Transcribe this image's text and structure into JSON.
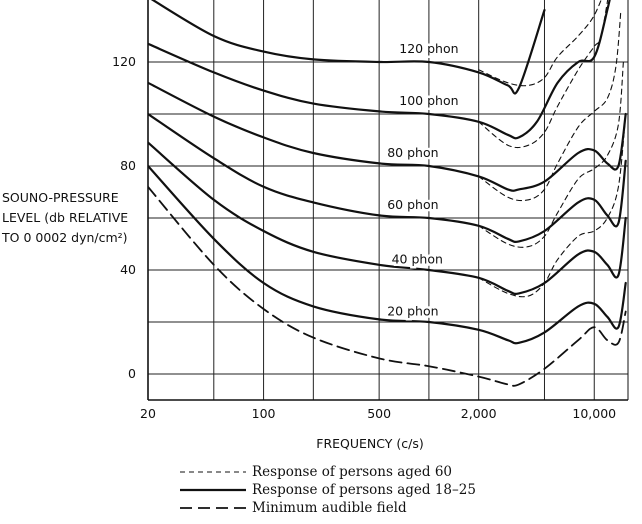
{
  "chart_data": {
    "type": "line",
    "xlabel": "FREQUENCY (c/s)",
    "ylabel_lines": [
      "SOUNO-PRESSURE",
      "LEVEL (db RELATIVE",
      "TO 0 0002 dyn/cm²)"
    ],
    "x_scale": "log",
    "xlim": [
      20,
      16000
    ],
    "ylim": [
      -10,
      140
    ],
    "x_ticks": [
      {
        "value": 20,
        "label": "20"
      },
      {
        "value": 100,
        "label": "100"
      },
      {
        "value": 500,
        "label": "500"
      },
      {
        "value": 2000,
        "label": "2,000"
      },
      {
        "value": 10000,
        "label": "10,000"
      }
    ],
    "y_ticks": [
      {
        "value": 0,
        "label": "0"
      },
      {
        "value": 40,
        "label": "40"
      },
      {
        "value": 80,
        "label": "80"
      },
      {
        "value": 120,
        "label": "120"
      }
    ],
    "x_grid": [
      20,
      50,
      100,
      200,
      500,
      1000,
      2000,
      5000,
      10000
    ],
    "y_grid": [
      0,
      20,
      40,
      60,
      80,
      100,
      120
    ],
    "grid": true,
    "curve_labels": [
      {
        "text": "120 phon",
        "x": 1000,
        "y": 125
      },
      {
        "text": "100 phon",
        "x": 1000,
        "y": 105
      },
      {
        "text": "80 phon",
        "x": 800,
        "y": 85
      },
      {
        "text": "60 phon",
        "x": 800,
        "y": 65
      },
      {
        "text": "40 phon",
        "x": 850,
        "y": 44
      },
      {
        "text": "20 phon",
        "x": 800,
        "y": 24
      }
    ],
    "series": [
      {
        "group": "Response of persons aged 18–25",
        "style": "solid",
        "phon": 120,
        "x": [
          20,
          50,
          100,
          200,
          500,
          1000,
          2000,
          3000,
          3500,
          5000
        ],
        "y": [
          145,
          130,
          124,
          121,
          120,
          120,
          116,
          111,
          110,
          140
        ]
      },
      {
        "group": "Response of persons aged 18–25",
        "style": "solid",
        "phon": 100,
        "x": [
          20,
          50,
          100,
          200,
          500,
          1000,
          2000,
          3000,
          3500,
          4500,
          6000,
          8000,
          10000,
          12000,
          14000
        ],
        "y": [
          127,
          116,
          109,
          104,
          101,
          100,
          97,
          92,
          91,
          97,
          112,
          120,
          122,
          140,
          160
        ]
      },
      {
        "group": "Response of persons aged 18–25",
        "style": "solid",
        "phon": 80,
        "x": [
          20,
          50,
          100,
          200,
          500,
          1000,
          2000,
          3000,
          3500,
          5000,
          8000,
          10000,
          12000,
          14000,
          15500
        ],
        "y": [
          112,
          99,
          91,
          85,
          81,
          80,
          76,
          71,
          71,
          74,
          85,
          86,
          81,
          80,
          100
        ]
      },
      {
        "group": "Response of persons aged 18–25",
        "style": "solid",
        "phon": 60,
        "x": [
          20,
          50,
          100,
          200,
          500,
          1000,
          2000,
          3000,
          3500,
          5000,
          8000,
          10000,
          12000,
          14000,
          15500
        ],
        "y": [
          100,
          83,
          72,
          66,
          61,
          60,
          57,
          52,
          51,
          55,
          66,
          67,
          61,
          58,
          82
        ]
      },
      {
        "group": "Response of persons aged 18–25",
        "style": "solid",
        "phon": 40,
        "x": [
          20,
          50,
          100,
          200,
          500,
          1000,
          2000,
          3000,
          3500,
          5000,
          8000,
          10000,
          12000,
          14000,
          15500
        ],
        "y": [
          89,
          67,
          55,
          47,
          42,
          40,
          37,
          32,
          31,
          35,
          46,
          47,
          42,
          38,
          60
        ]
      },
      {
        "group": "Response of persons aged 18–25",
        "style": "solid",
        "phon": 20,
        "x": [
          20,
          50,
          100,
          200,
          500,
          1000,
          2000,
          3000,
          3500,
          5000,
          8000,
          10000,
          12000,
          14000,
          15500
        ],
        "y": [
          80,
          52,
          35,
          26,
          21,
          20,
          17,
          13,
          12,
          16,
          26,
          27,
          22,
          18,
          35
        ]
      },
      {
        "group": "Response of persons aged 60",
        "style": "short-dash",
        "phon": 120,
        "x": [
          2000,
          3000,
          4000,
          5000,
          6000,
          8000,
          10000,
          12000
        ],
        "y": [
          117,
          112,
          111,
          114,
          122,
          130,
          138,
          150
        ]
      },
      {
        "group": "Response of persons aged 60",
        "style": "short-dash",
        "phon": 100,
        "x": [
          2000,
          3000,
          4000,
          5000,
          6000,
          8000,
          10000,
          11000,
          12500
        ],
        "y": [
          97,
          88,
          88,
          93,
          103,
          117,
          126,
          130,
          150
        ]
      },
      {
        "group": "Response of persons aged 60",
        "style": "short-dash",
        "phon": 80,
        "x": [
          2000,
          3000,
          4000,
          5000,
          6000,
          8000,
          10000,
          12000,
          13500,
          14500
        ],
        "y": [
          76,
          68,
          67,
          71,
          81,
          95,
          101,
          106,
          118,
          140
        ]
      },
      {
        "group": "Response of persons aged 60",
        "style": "short-dash",
        "phon": 60,
        "x": [
          2000,
          3000,
          4000,
          5000,
          6000,
          8000,
          10000,
          12000,
          14000,
          15000
        ],
        "y": [
          57,
          50,
          49,
          53,
          62,
          75,
          79,
          84,
          96,
          120
        ]
      },
      {
        "group": "Response of persons aged 60",
        "style": "short-dash",
        "phon": 40,
        "x": [
          2000,
          3000,
          4000,
          5000,
          6000,
          8000,
          10000,
          12000,
          14000,
          15500
        ],
        "y": [
          37,
          31,
          30,
          35,
          44,
          53,
          55,
          60,
          72,
          100
        ]
      },
      {
        "group": "Minimum audible field",
        "style": "long-dash",
        "x": [
          20,
          50,
          100,
          200,
          500,
          1000,
          2000,
          3000,
          3500,
          5000,
          8000,
          10000,
          12000,
          14000,
          15500
        ],
        "y": [
          72,
          42,
          25,
          14,
          6,
          3,
          -1,
          -4,
          -4,
          2,
          13,
          18,
          13,
          12,
          24
        ]
      }
    ],
    "legend": {
      "placement": "bottom-center",
      "entries": [
        {
          "style": "short-dash",
          "label": "Response of persons aged 60"
        },
        {
          "style": "solid",
          "label": "Response of persons aged 18–25"
        },
        {
          "style": "long-dash",
          "label": "Minimum audible field"
        }
      ]
    }
  }
}
